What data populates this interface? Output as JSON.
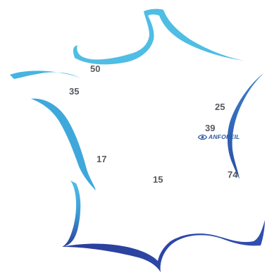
{
  "map": {
    "outline_colors": {
      "light": "#52c0e4",
      "mid": "#3b8fcf",
      "dark": "#2b3d9a"
    }
  },
  "departments": [
    {
      "id": "50",
      "label": "50"
    },
    {
      "id": "35",
      "label": "35"
    },
    {
      "id": "25",
      "label": "25"
    },
    {
      "id": "39",
      "label": "39"
    },
    {
      "id": "17",
      "label": "17"
    },
    {
      "id": "15",
      "label": "15"
    },
    {
      "id": "74",
      "label": "74"
    }
  ],
  "logo": {
    "text": "ANFOPEIL",
    "icon": "eye-icon",
    "color": "#2e5aa8"
  }
}
